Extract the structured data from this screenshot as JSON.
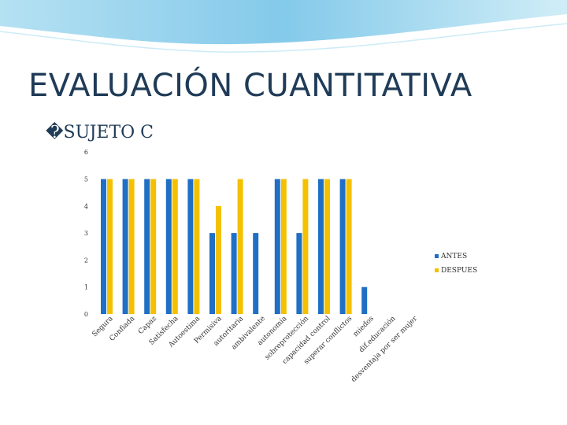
{
  "slide": {
    "title": "EVALUACIÓN CUANTITATIVA",
    "subtitle": "�SUJETO C"
  },
  "colors": {
    "antes": "#1f6fc5",
    "despues": "#f5c000",
    "title": "#1f3b57",
    "wave": "#7ec8e8"
  },
  "chart_data": {
    "type": "bar",
    "categories": [
      "Segura",
      "Confiada",
      "Capaz",
      "Satisfecha",
      "Autoestima",
      "Permisiva",
      "autoritaria",
      "ambivalente",
      "autonomía",
      "sobreprotección",
      "capacidad control",
      "superar conflictos",
      "miedos",
      "dif.educación",
      "desventaja por ser mujer"
    ],
    "series": [
      {
        "name": "ANTES",
        "values": [
          5,
          5,
          5,
          5,
          5,
          3,
          3,
          3,
          5,
          3,
          5,
          5,
          1,
          0,
          0
        ]
      },
      {
        "name": "DESPUES",
        "values": [
          5,
          5,
          5,
          5,
          5,
          4,
          5,
          0,
          5,
          5,
          5,
          5,
          0,
          0,
          0
        ]
      }
    ],
    "ylim": [
      0,
      6
    ],
    "yticks": [
      "0",
      "1",
      "2",
      "3",
      "4",
      "5",
      "6"
    ],
    "legend_position": "right",
    "grid": false
  }
}
